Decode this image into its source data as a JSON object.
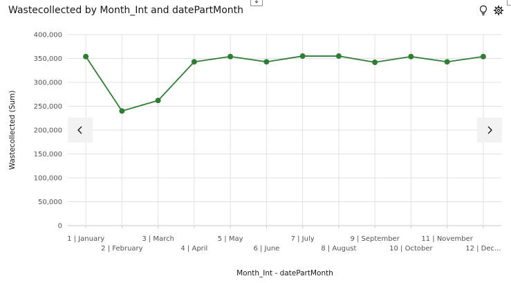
{
  "header": {
    "title": "Wastecollected by Month_Int and datePartMonth",
    "icons": [
      "lightbulb-icon",
      "settings-icon"
    ]
  },
  "navigation": {
    "prev_icon": "chevron-left-icon",
    "next_icon": "chevron-right-icon"
  },
  "chart_data": {
    "type": "line",
    "title": "Wastecollected by Month_Int and datePartMonth",
    "xlabel": "Month_Int - datePartMonth",
    "ylabel": "Wastecollected (Sum)",
    "ylim": [
      0,
      400000
    ],
    "yticks": [
      "0",
      "50,000",
      "100,000",
      "150,000",
      "200,000",
      "250,000",
      "300,000",
      "350,000",
      "400,000"
    ],
    "categories": [
      "1 | January",
      "2 | February",
      "3 | March",
      "4 | April",
      "5 | May",
      "6 | June",
      "7 | July",
      "8 | August",
      "9 | September",
      "10 | October",
      "11 | November",
      "12 | Dec..."
    ],
    "series": [
      {
        "values": [
          354000,
          240000,
          262000,
          343000,
          354000,
          343000,
          355000,
          355000,
          342000,
          354000,
          343000,
          354000
        ]
      }
    ],
    "grid": true,
    "color": "#2e7d32"
  }
}
